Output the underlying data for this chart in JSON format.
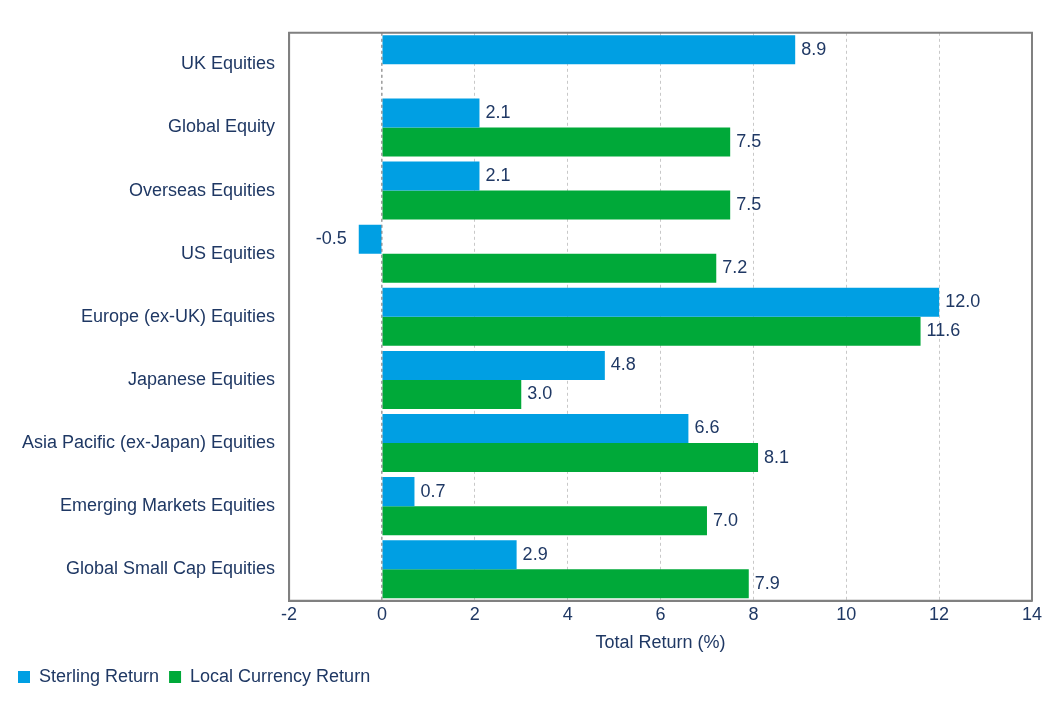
{
  "chart_data": {
    "type": "bar",
    "orientation": "horizontal",
    "xlabel": "Total Return (%)",
    "categories": [
      "UK Equities",
      "Global Equity",
      "Overseas Equities",
      "US Equities",
      "Europe (ex-UK) Equities",
      "Japanese Equities",
      "Asia Pacific (ex-Japan) Equities",
      "Emerging Markets Equities",
      "Global Small Cap Equities"
    ],
    "series": [
      {
        "name": "Sterling Return",
        "color": "#009fe3",
        "values": [
          8.9,
          2.1,
          2.1,
          -0.5,
          12.0,
          4.8,
          6.6,
          0.7,
          2.9
        ],
        "value_labels": [
          "8.9",
          "2.1",
          "2.1",
          "-0.5",
          "12.0",
          "4.8",
          "6.6",
          "0.7",
          "2.9"
        ]
      },
      {
        "name": "Local Currency Return",
        "color": "#00a939",
        "values": [
          null,
          7.5,
          7.5,
          7.2,
          11.6,
          3.0,
          8.1,
          7.0,
          7.9
        ],
        "value_labels": [
          null,
          "7.5",
          "7.5",
          "7.2",
          "11.6",
          "3.0",
          "8.1",
          "7.0",
          "7.9"
        ]
      }
    ],
    "ref_lines": [
      {
        "axis": "x",
        "value": 0,
        "color": "#808080",
        "line_style": "dashed"
      }
    ],
    "xlim": [
      -2,
      14
    ],
    "xticks": [
      -2,
      0,
      2,
      4,
      6,
      8,
      10,
      12,
      14
    ],
    "grid": "x",
    "legend": "bottom left"
  }
}
